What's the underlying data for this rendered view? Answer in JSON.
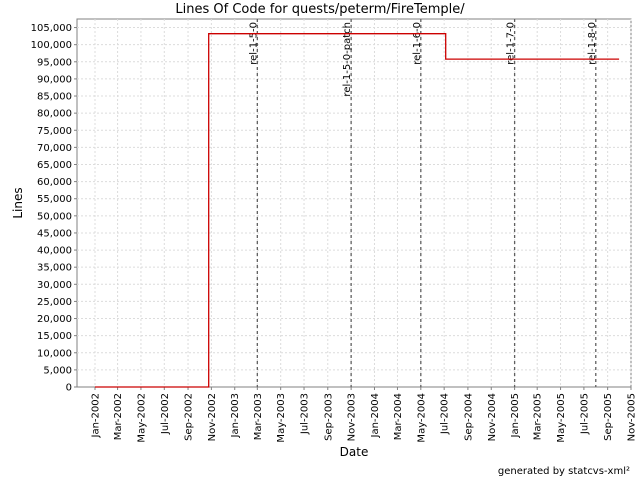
{
  "chart_data": {
    "type": "line",
    "title": "Lines Of Code for quests/peterm/FireTemple/",
    "xlabel": "Date",
    "ylabel": "Lines",
    "ylim": [
      0,
      107500
    ],
    "xlim": [
      "2001-11-15",
      "2005-11-01"
    ],
    "grid": true,
    "y_ticks": [
      0,
      5000,
      10000,
      15000,
      20000,
      25000,
      30000,
      35000,
      40000,
      45000,
      50000,
      55000,
      60000,
      65000,
      70000,
      75000,
      80000,
      85000,
      90000,
      95000,
      100000,
      105000
    ],
    "y_tick_labels": [
      "0",
      "5,000",
      "10,000",
      "15,000",
      "20,000",
      "25,000",
      "30,000",
      "35,000",
      "40,000",
      "45,000",
      "50,000",
      "55,000",
      "60,000",
      "65,000",
      "70,000",
      "75,000",
      "80,000",
      "85,000",
      "90,000",
      "95,000",
      "100,000",
      "105,000"
    ],
    "x_ticks": [
      "2002-01-01",
      "2002-03-01",
      "2002-05-01",
      "2002-07-01",
      "2002-09-01",
      "2002-11-01",
      "2003-01-01",
      "2003-03-01",
      "2003-05-01",
      "2003-07-01",
      "2003-09-01",
      "2003-11-01",
      "2004-01-01",
      "2004-03-01",
      "2004-05-01",
      "2004-07-01",
      "2004-09-01",
      "2004-11-01",
      "2005-01-01",
      "2005-03-01",
      "2005-05-01",
      "2005-07-01",
      "2005-09-01",
      "2005-11-01"
    ],
    "x_tick_labels": [
      "Jan-2002",
      "Mar-2002",
      "May-2002",
      "Jul-2002",
      "Sep-2002",
      "Nov-2002",
      "Jan-2003",
      "Mar-2003",
      "May-2003",
      "Jul-2003",
      "Sep-2003",
      "Nov-2003",
      "Jan-2004",
      "Mar-2004",
      "May-2004",
      "Jul-2004",
      "Sep-2004",
      "Nov-2004",
      "Jan-2005",
      "Mar-2005",
      "May-2005",
      "Jul-2005",
      "Sep-2005",
      "Nov-2005"
    ],
    "series": [
      {
        "color": "#cc0000",
        "step": true,
        "points": [
          {
            "x": "2002-01-01",
            "y": 0
          },
          {
            "x": "2002-10-25",
            "y": 0
          },
          {
            "x": "2002-10-25",
            "y": 103200
          },
          {
            "x": "2004-07-05",
            "y": 103200
          },
          {
            "x": "2004-07-05",
            "y": 95800
          },
          {
            "x": "2005-10-01",
            "y": 95800
          }
        ]
      }
    ],
    "tags": [
      {
        "label": "rel-1-5-0",
        "date": "2003-03-01"
      },
      {
        "label": "rel-1-5-0-patch",
        "date": "2003-11-01"
      },
      {
        "label": "rel-1-6-0",
        "date": "2004-05-01"
      },
      {
        "label": "rel-1-7-0",
        "date": "2005-01-01"
      },
      {
        "label": "rel-1-8-0",
        "date": "2005-08-01"
      }
    ],
    "footer": "generated by statcvs-xml²"
  }
}
